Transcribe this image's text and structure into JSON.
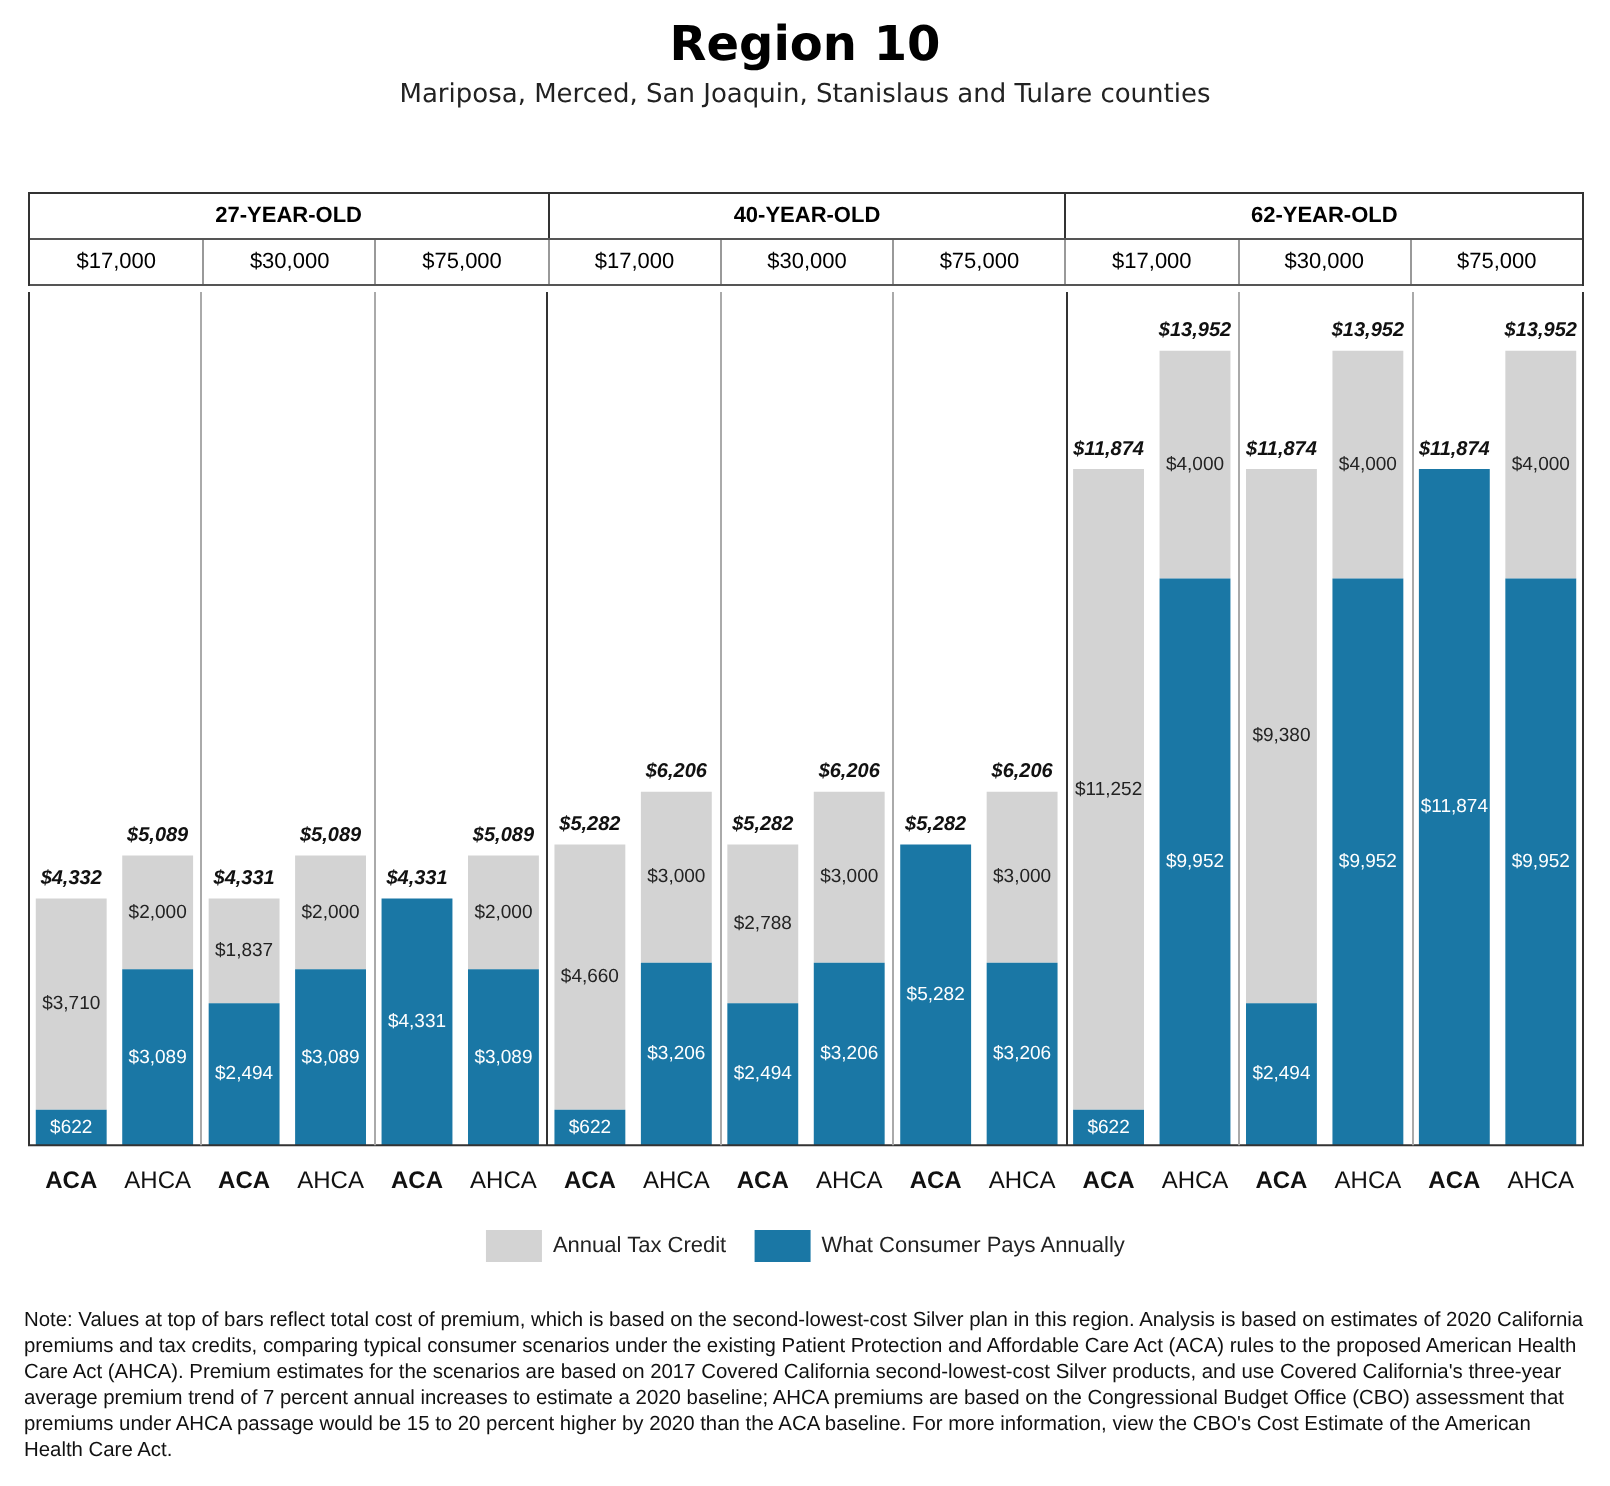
{
  "chart_data": {
    "type": "bar",
    "title": "Region 10",
    "subtitle": "Mariposa, Merced, San Joaquin, Stanislaus and Tulare counties",
    "categories": [
      "ACA",
      "AHCA",
      "ACA",
      "AHCA",
      "ACA",
      "AHCA",
      "ACA",
      "AHCA",
      "ACA",
      "AHCA",
      "ACA",
      "AHCA",
      "ACA",
      "AHCA",
      "ACA",
      "AHCA",
      "ACA",
      "AHCA"
    ],
    "stacked": true,
    "legend": "bottom",
    "series": [
      {
        "name": "What Consumer Pays Annually",
        "color": "#1a77a5",
        "values": [
          622,
          3089,
          2494,
          3089,
          4331,
          3089,
          622,
          3206,
          2494,
          3206,
          5282,
          3206,
          622,
          9952,
          2494,
          9952,
          11874,
          9952
        ],
        "value_labels": [
          "$622",
          "$3,089",
          "$2,494",
          "$3,089",
          "$4,331",
          "$3,089",
          "$622",
          "$3,206",
          "$2,494",
          "$3,206",
          "$5,282",
          "$3,206",
          "$622",
          "$9,952",
          "$2,494",
          "$9,952",
          "$11,874",
          "$9,952"
        ]
      },
      {
        "name": "Annual Tax Credit",
        "color": "#d3d3d3",
        "values": [
          3710,
          2000,
          1837,
          2000,
          null,
          2000,
          4660,
          3000,
          2788,
          3000,
          null,
          3000,
          11252,
          4000,
          9380,
          4000,
          null,
          4000
        ],
        "value_labels": [
          "$3,710",
          "$2,000",
          "$1,837",
          "$2,000",
          null,
          "$2,000",
          "$4,660",
          "$3,000",
          "$2,788",
          "$3,000",
          null,
          "$3,000",
          "$11,252",
          "$4,000",
          "$9,380",
          "$4,000",
          null,
          "$4,000"
        ]
      }
    ],
    "totals": [
      "$4,332",
      "$5,089",
      "$4,331",
      "$5,089",
      "$4,331",
      "$5,089",
      "$5,282",
      "$6,206",
      "$5,282",
      "$6,206",
      "$5,282",
      "$6,206",
      "$11,874",
      "$13,952",
      "$11,874",
      "$13,952",
      "$11,874",
      "$13,952"
    ],
    "annotations": [
      "27-YEAR-OLD",
      "40-YEAR-OLD",
      "62-YEAR-OLD",
      "$17,000",
      "$30,000",
      "$75,000",
      "$17,000",
      "$30,000",
      "$75,000",
      "$17,000",
      "$30,000",
      "$75,000",
      "Note: Values at top of bars reflect total cost of premium, which is based on the second-lowest-cost Silver plan in this region. Analysis is based on estimates of 2020 California premiums and tax credits, comparing typical consumer scenarios under the existing Patient Protection and Affordable Care Act (ACA) rules to the proposed American Health Care Act (AHCA). Premium estimates for the scenarios are based on 2017 Covered California second-lowest-cost Silver products, and use Covered California's three-year average premium trend of 7 percent annual increases to estimate a 2020 baseline; AHCA premiums are based on the Congressional Budget Office (CBO) assessment that premiums under AHCA passage would be 15 to 20 percent higher by 2020 than the ACA baseline. For more information, view the CBO's Cost Estimate of the American Health Care Act."
    ]
  }
}
